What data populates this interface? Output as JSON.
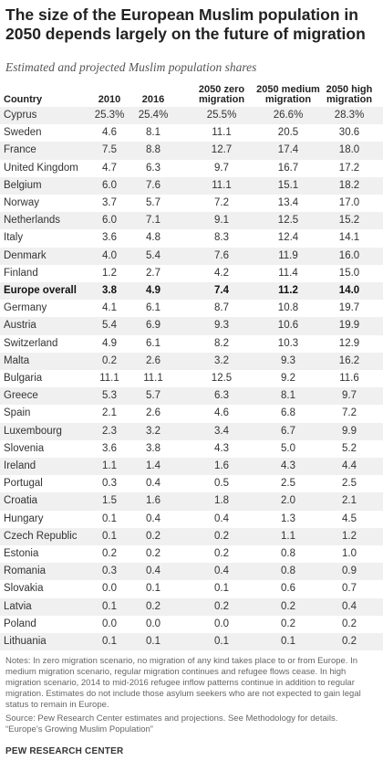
{
  "title": "The size of the European Muslim population in 2050 depends largely on the future of migration",
  "subtitle": "Estimated and projected Muslim population shares",
  "chart_data": {
    "type": "table",
    "columns": [
      "Country",
      "2010",
      "2016",
      "2050 zero\nmigration",
      "2050 medium\nmigration",
      "2050 high\nmigration"
    ],
    "rows": [
      [
        "Cyprus",
        "25.3%",
        "25.4%",
        "25.5%",
        "26.6%",
        "28.3%"
      ],
      [
        "Sweden",
        "4.6",
        "8.1",
        "11.1",
        "20.5",
        "30.6"
      ],
      [
        "France",
        "7.5",
        "8.8",
        "12.7",
        "17.4",
        "18.0"
      ],
      [
        "United Kingdom",
        "4.7",
        "6.3",
        "9.7",
        "16.7",
        "17.2"
      ],
      [
        "Belgium",
        "6.0",
        "7.6",
        "11.1",
        "15.1",
        "18.2"
      ],
      [
        "Norway",
        "3.7",
        "5.7",
        "7.2",
        "13.4",
        "17.0"
      ],
      [
        "Netherlands",
        "6.0",
        "7.1",
        "9.1",
        "12.5",
        "15.2"
      ],
      [
        "Italy",
        "3.6",
        "4.8",
        "8.3",
        "12.4",
        "14.1"
      ],
      [
        "Denmark",
        "4.0",
        "5.4",
        "7.6",
        "11.9",
        "16.0"
      ],
      [
        "Finland",
        "1.2",
        "2.7",
        "4.2",
        "11.4",
        "15.0"
      ],
      [
        "Europe overall",
        "3.8",
        "4.9",
        "7.4",
        "11.2",
        "14.0"
      ],
      [
        "Germany",
        "4.1",
        "6.1",
        "8.7",
        "10.8",
        "19.7"
      ],
      [
        "Austria",
        "5.4",
        "6.9",
        "9.3",
        "10.6",
        "19.9"
      ],
      [
        "Switzerland",
        "4.9",
        "6.1",
        "8.2",
        "10.3",
        "12.9"
      ],
      [
        "Malta",
        "0.2",
        "2.6",
        "3.2",
        "9.3",
        "16.2"
      ],
      [
        "Bulgaria",
        "11.1",
        "11.1",
        "12.5",
        "9.2",
        "11.6"
      ],
      [
        "Greece",
        "5.3",
        "5.7",
        "6.3",
        "8.1",
        "9.7"
      ],
      [
        "Spain",
        "2.1",
        "2.6",
        "4.6",
        "6.8",
        "7.2"
      ],
      [
        "Luxembourg",
        "2.3",
        "3.2",
        "3.4",
        "6.7",
        "9.9"
      ],
      [
        "Slovenia",
        "3.6",
        "3.8",
        "4.3",
        "5.0",
        "5.2"
      ],
      [
        "Ireland",
        "1.1",
        "1.4",
        "1.6",
        "4.3",
        "4.4"
      ],
      [
        "Portugal",
        "0.3",
        "0.4",
        "0.5",
        "2.5",
        "2.5"
      ],
      [
        "Croatia",
        "1.5",
        "1.6",
        "1.8",
        "2.0",
        "2.1"
      ],
      [
        "Hungary",
        "0.1",
        "0.4",
        "0.4",
        "1.3",
        "4.5"
      ],
      [
        "Czech Republic",
        "0.1",
        "0.2",
        "0.2",
        "1.1",
        "1.2"
      ],
      [
        "Estonia",
        "0.2",
        "0.2",
        "0.2",
        "0.8",
        "1.0"
      ],
      [
        "Romania",
        "0.3",
        "0.4",
        "0.4",
        "0.8",
        "0.9"
      ],
      [
        "Slovakia",
        "0.0",
        "0.1",
        "0.1",
        "0.6",
        "0.7"
      ],
      [
        "Latvia",
        "0.1",
        "0.2",
        "0.2",
        "0.2",
        "0.4"
      ],
      [
        "Poland",
        "0.0",
        "0.0",
        "0.0",
        "0.2",
        "0.2"
      ],
      [
        "Lithuania",
        "0.1",
        "0.1",
        "0.1",
        "0.1",
        "0.2"
      ]
    ],
    "highlight_row": "Europe overall",
    "row_shading": "alternating"
  },
  "notes": "Notes: In zero migration scenario, no migration of any kind takes place to or from Europe. In medium migration scenario, regular migration continues and refugee flows cease. In high migration scenario, 2014 to mid-2016 refugee inflow patterns continue in addition to regular migration. Estimates do not include those asylum seekers who are not expected to gain legal status to remain in Europe.",
  "source": "Source: Pew Research Center estimates and projections. See Methodology for details.\n“Europe’s Growing Muslim Population”",
  "brand": "PEW RESEARCH CENTER",
  "colors": {
    "text": "#333333",
    "title": "#222222",
    "stripe": "#f0f0f0",
    "background": "#ffffff"
  }
}
